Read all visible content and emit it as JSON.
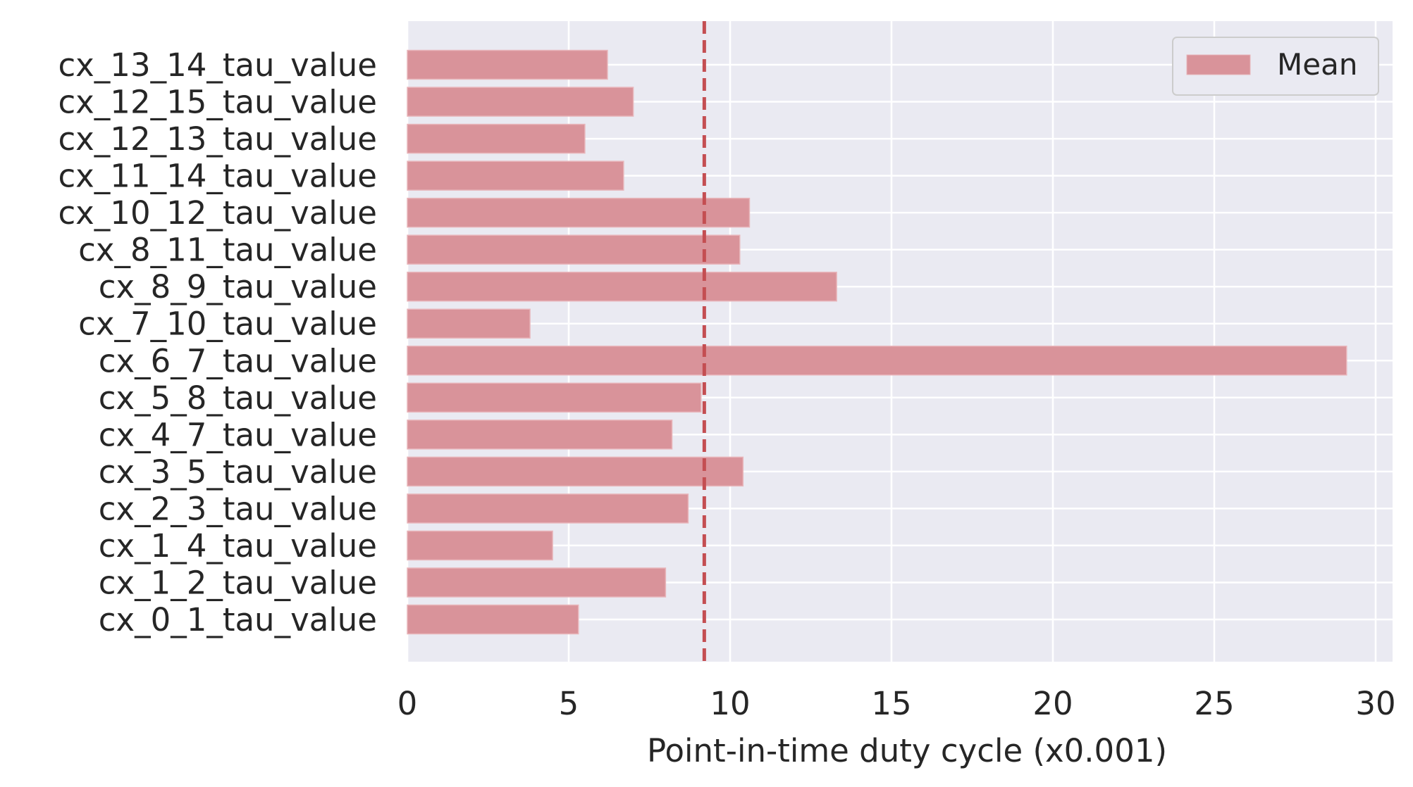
{
  "chart_data": {
    "type": "bar",
    "orientation": "horizontal",
    "title": "",
    "xlabel": "Point-in-time duty cycle  (x0.001)",
    "ylabel": "",
    "xlim": [
      0,
      30.5
    ],
    "xticks": [
      0,
      5,
      10,
      15,
      20,
      25,
      30
    ],
    "grid": true,
    "legend_position": "top-right",
    "bar_color": "#d9939a",
    "mean_line_color": "#c44e52",
    "plot_bg": "#eaeaf2",
    "categories": [
      "cx_13_14_tau_value",
      "cx_12_15_tau_value",
      "cx_12_13_tau_value",
      "cx_11_14_tau_value",
      "cx_10_12_tau_value",
      "cx_8_11_tau_value",
      "cx_8_9_tau_value",
      "cx_7_10_tau_value",
      "cx_6_7_tau_value",
      "cx_5_8_tau_value",
      "cx_4_7_tau_value",
      "cx_3_5_tau_value",
      "cx_2_3_tau_value",
      "cx_1_4_tau_value",
      "cx_1_2_tau_value",
      "cx_0_1_tau_value"
    ],
    "series": [
      {
        "name": "Mean",
        "values": [
          6.2,
          7.0,
          5.5,
          6.7,
          10.6,
          10.3,
          13.3,
          3.8,
          29.1,
          9.1,
          8.2,
          10.4,
          8.7,
          4.5,
          8.0,
          5.3
        ]
      }
    ],
    "mean_line_value": 9.2
  }
}
